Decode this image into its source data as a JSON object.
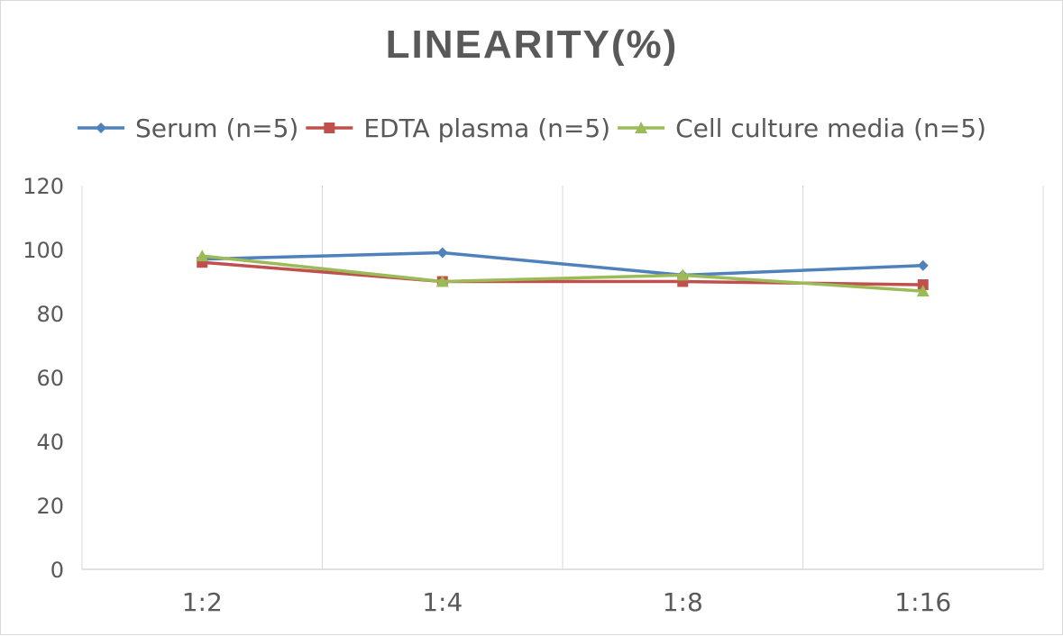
{
  "chart_data": {
    "type": "line",
    "title": "LINEARITY(%)",
    "categories": [
      "1:2",
      "1:4",
      "1:8",
      "1:16"
    ],
    "ylim": [
      0,
      120
    ],
    "yticks": [
      0,
      20,
      40,
      60,
      80,
      100,
      120
    ],
    "grid": "vertical",
    "legend": "top",
    "series": [
      {
        "name": "Serum (n=5)",
        "values": [
          97,
          99,
          92,
          95
        ],
        "color": "#4f81bd",
        "marker": "diamond"
      },
      {
        "name": "EDTA plasma (n=5)",
        "values": [
          96,
          90,
          90,
          89
        ],
        "color": "#c0504d",
        "marker": "square"
      },
      {
        "name": "Cell culture media (n=5)",
        "values": [
          98,
          90,
          92,
          87
        ],
        "color": "#9bbb59",
        "marker": "triangle"
      }
    ]
  }
}
